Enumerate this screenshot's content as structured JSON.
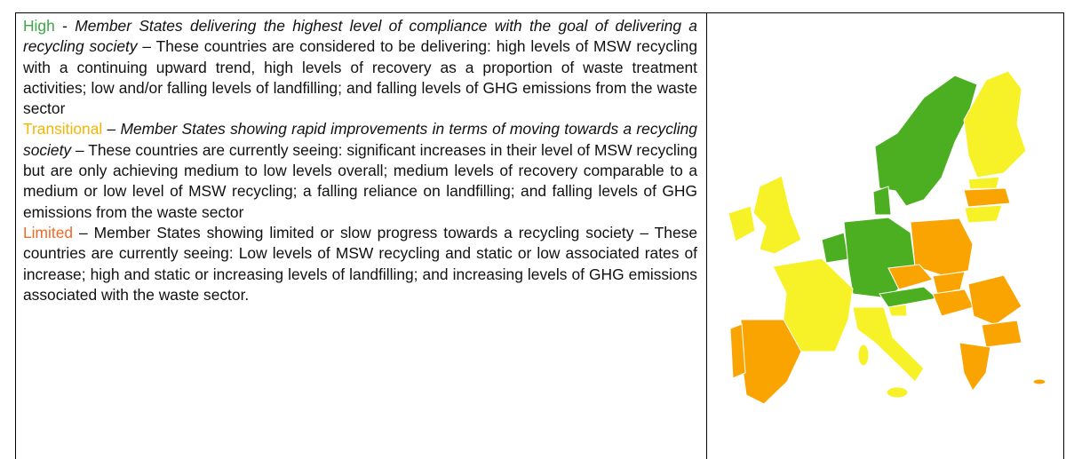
{
  "paragraphs": [
    {
      "parts": [
        {
          "text": "High"
        },
        {
          "text": " - "
        },
        {
          "text": "Member States delivering the highest level of compliance with the goal of delivering a recycling society"
        },
        {
          "text": " – These countries are considered to be delivering: high levels of MSW recycling with a continuing upward trend, high levels of recovery as a proportion of waste treatment activities; low and/or falling levels of landfilling; and falling levels of GHG emissions from the waste sector"
        }
      ]
    },
    {
      "parts": [
        {
          "text": "Transitional"
        },
        {
          "text": " – "
        },
        {
          "text": "Member States showing rapid improvements in terms of moving towards a recycling society"
        },
        {
          "text": " – These countries are currently seeing: significant increases in their level of MSW recycling but are only achieving medium to low levels overall; medium levels of recovery comparable to a medium or low level of MSW recycling; a falling reliance on landfilling; and falling levels of GHG emissions from the waste sector"
        }
      ]
    },
    {
      "parts": [
        {
          "text": "Limited"
        },
        {
          "text": " – Member States showing limited or slow progress towards a recycling society – These countries are currently seeing: Low levels of MSW recycling and static or low associated rates of increase; high and static or increasing levels of landfilling; and increasing levels of GHG emissions associated with the waste sector."
        }
      ]
    }
  ]
}
